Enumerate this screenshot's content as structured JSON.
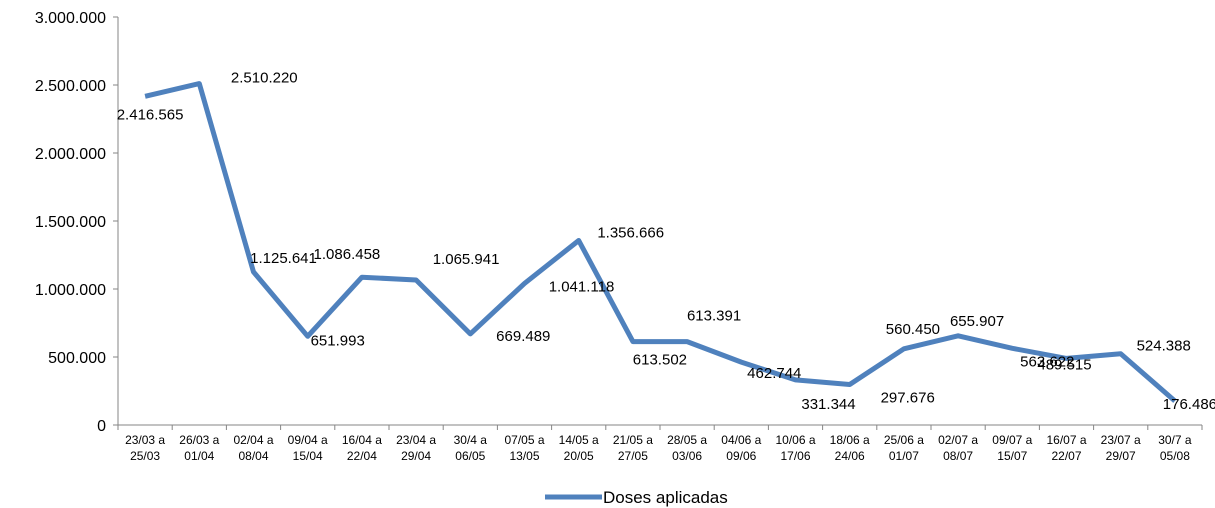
{
  "chart_data": {
    "type": "line",
    "categories": [
      [
        "23/03 a",
        "25/03"
      ],
      [
        "26/03 a",
        "01/04"
      ],
      [
        "02/04 a",
        "08/04"
      ],
      [
        "09/04 a",
        "15/04"
      ],
      [
        "16/04 a",
        "22/04"
      ],
      [
        "23/04 a",
        "29/04"
      ],
      [
        "30/4 a",
        "06/05"
      ],
      [
        "07/05 a",
        "13/05"
      ],
      [
        "14/05 a",
        "20/05"
      ],
      [
        "21/05 a",
        "27/05"
      ],
      [
        "28/05 a",
        "03/06"
      ],
      [
        "04/06 a",
        "09/06"
      ],
      [
        "10/06 a",
        "17/06"
      ],
      [
        "18/06 a",
        "24/06"
      ],
      [
        "25/06 a",
        "01/07"
      ],
      [
        "02/07 a",
        "08/07"
      ],
      [
        "09/07 a",
        "15/07"
      ],
      [
        "16/07 a",
        "22/07"
      ],
      [
        "23/07 a",
        "29/07"
      ],
      [
        "30/7 a",
        "05/08"
      ]
    ],
    "series": [
      {
        "name": "Doses aplicadas",
        "color": "#4f81bd",
        "values": [
          2416565,
          2510220,
          1125641,
          651993,
          1086458,
          1065941,
          669489,
          1041118,
          1356666,
          613502,
          613391,
          462744,
          331344,
          297676,
          560450,
          655907,
          563622,
          489515,
          524388,
          176486
        ],
        "labels": [
          "2.416.565",
          "2.510.220",
          "1.125.641",
          "651.993",
          "1.086.458",
          "1.065.941",
          "669.489",
          "1.041.118",
          "1.356.666",
          "613.502",
          "613.391",
          "462.744",
          "331.344",
          "297.676",
          "560.450",
          "655.907",
          "563.622",
          "489.515",
          "524.388",
          "176.486"
        ]
      }
    ],
    "ylim": [
      0,
      3000000
    ],
    "yticks": [
      0,
      500000,
      1000000,
      1500000,
      2000000,
      2500000,
      3000000
    ],
    "ytick_labels": [
      "0",
      "500.000",
      "1.000.000",
      "1.500.000",
      "2.000.000",
      "2.500.000",
      "3.000.000"
    ],
    "grid": false,
    "legend_position": "bottom"
  }
}
